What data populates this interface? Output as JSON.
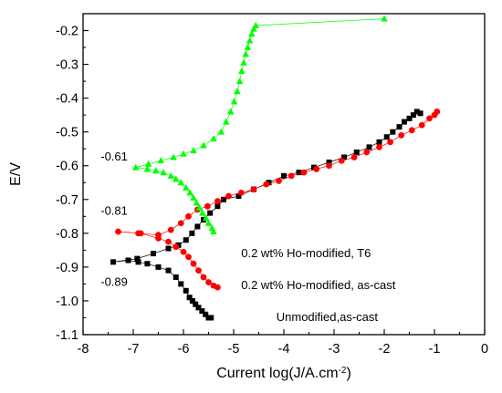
{
  "chart_data": {
    "type": "scatter",
    "xlabel": "Current log(J/A.cm",
    "xlabel_sup": "-2",
    "xlabel_end": ")",
    "ylabel": "E/V",
    "xlim": [
      -8,
      0
    ],
    "ylim": [
      -1.1,
      -0.15
    ],
    "xticks": [
      "-8",
      "-7",
      "-6",
      "-5",
      "-4",
      "-3",
      "-2",
      "-1",
      "0"
    ],
    "yticks": [
      "-0.2",
      "-0.3",
      "-0.4",
      "-0.5",
      "-0.6",
      "-0.7",
      "-0.8",
      "-0.9",
      "-1.0",
      "-1.1"
    ],
    "grid": false,
    "series": [
      {
        "name": "Unmodified,as-cast",
        "color": "#000000",
        "marker": "square",
        "x": [
          -5.45,
          -5.5,
          -5.56,
          -5.63,
          -5.7,
          -5.76,
          -5.82,
          -5.88,
          -5.95,
          -6.05,
          -6.15,
          -6.3,
          -6.5,
          -6.72,
          -6.9,
          -7.1,
          -7.4,
          -6.92,
          -6.6,
          -6.3,
          -6.1,
          -5.95,
          -5.83,
          -5.72,
          -5.6,
          -5.47,
          -5.32,
          -5.2,
          -4.9,
          -4.6,
          -4.3,
          -4.0,
          -3.7,
          -3.4,
          -3.1,
          -2.8,
          -2.55,
          -2.3,
          -2.1,
          -1.95,
          -1.83,
          -1.7,
          -1.6,
          -1.5,
          -1.42,
          -1.35,
          -1.28
        ],
        "y": [
          -1.05,
          -1.05,
          -1.04,
          -1.03,
          -1.02,
          -1.01,
          -1.0,
          -0.99,
          -0.97,
          -0.95,
          -0.93,
          -0.91,
          -0.9,
          -0.89,
          -0.885,
          -0.88,
          -0.885,
          -0.875,
          -0.86,
          -0.845,
          -0.835,
          -0.82,
          -0.8,
          -0.78,
          -0.76,
          -0.74,
          -0.72,
          -0.7,
          -0.69,
          -0.67,
          -0.65,
          -0.63,
          -0.62,
          -0.605,
          -0.59,
          -0.575,
          -0.56,
          -0.545,
          -0.53,
          -0.515,
          -0.5,
          -0.485,
          -0.47,
          -0.46,
          -0.45,
          -0.44,
          -0.445
        ]
      },
      {
        "name": "0.2 wt% Ho-modified, as-cast",
        "color": "#ff0000",
        "marker": "circle",
        "x": [
          -5.32,
          -5.4,
          -5.5,
          -5.6,
          -5.7,
          -5.8,
          -5.9,
          -6.0,
          -6.15,
          -6.3,
          -6.5,
          -6.85,
          -7.3,
          -6.9,
          -6.5,
          -6.25,
          -6.05,
          -5.9,
          -5.72,
          -5.52,
          -5.32,
          -5.1,
          -4.85,
          -4.6,
          -4.35,
          -4.1,
          -3.85,
          -3.6,
          -3.35,
          -3.1,
          -2.85,
          -2.6,
          -2.35,
          -2.1,
          -1.88,
          -1.66,
          -1.45,
          -1.25,
          -1.1,
          -1.0,
          -0.95
        ],
        "y": [
          -0.96,
          -0.955,
          -0.945,
          -0.93,
          -0.91,
          -0.89,
          -0.87,
          -0.855,
          -0.84,
          -0.825,
          -0.815,
          -0.8,
          -0.795,
          -0.8,
          -0.805,
          -0.79,
          -0.77,
          -0.75,
          -0.73,
          -0.72,
          -0.705,
          -0.69,
          -0.68,
          -0.67,
          -0.655,
          -0.645,
          -0.63,
          -0.62,
          -0.61,
          -0.6,
          -0.585,
          -0.575,
          -0.56,
          -0.545,
          -0.53,
          -0.51,
          -0.495,
          -0.48,
          -0.46,
          -0.45,
          -0.44
        ]
      },
      {
        "name": "0.2 wt% Ho-modified, T6",
        "color": "#00ff00",
        "marker": "triangle",
        "x": [
          -5.4,
          -5.43,
          -5.5,
          -5.55,
          -5.62,
          -5.68,
          -5.74,
          -5.8,
          -5.87,
          -5.95,
          -6.05,
          -6.15,
          -6.25,
          -6.4,
          -6.55,
          -6.72,
          -6.95,
          -6.7,
          -6.45,
          -6.2,
          -6.0,
          -5.8,
          -5.6,
          -5.4,
          -5.25,
          -5.15,
          -5.06,
          -4.99,
          -4.93,
          -4.88,
          -4.84,
          -4.8,
          -4.76,
          -4.72,
          -4.68,
          -4.64,
          -4.6,
          -4.56,
          -2.0
        ],
        "y": [
          -0.795,
          -0.785,
          -0.77,
          -0.755,
          -0.74,
          -0.725,
          -0.71,
          -0.695,
          -0.68,
          -0.665,
          -0.65,
          -0.64,
          -0.63,
          -0.62,
          -0.615,
          -0.61,
          -0.605,
          -0.595,
          -0.585,
          -0.575,
          -0.565,
          -0.555,
          -0.54,
          -0.52,
          -0.5,
          -0.47,
          -0.44,
          -0.41,
          -0.38,
          -0.35,
          -0.32,
          -0.295,
          -0.27,
          -0.25,
          -0.23,
          -0.21,
          -0.195,
          -0.185,
          -0.165
        ]
      }
    ],
    "annotations": [
      {
        "text": "-0.61",
        "x": -7.65,
        "y": -0.585
      },
      {
        "text": "-0.81",
        "x": -7.65,
        "y": -0.745
      },
      {
        "text": "-0.89",
        "x": -7.65,
        "y": -0.955
      },
      {
        "text": "0.2 wt% Ho-modified, T6",
        "x": -4.85,
        "y": -0.87
      },
      {
        "text": "0.2 wt% Ho-modified, as-cast",
        "x": -4.85,
        "y": -0.965
      },
      {
        "text": "Unmodified,as-cast",
        "x": -4.15,
        "y": -1.06
      }
    ]
  }
}
